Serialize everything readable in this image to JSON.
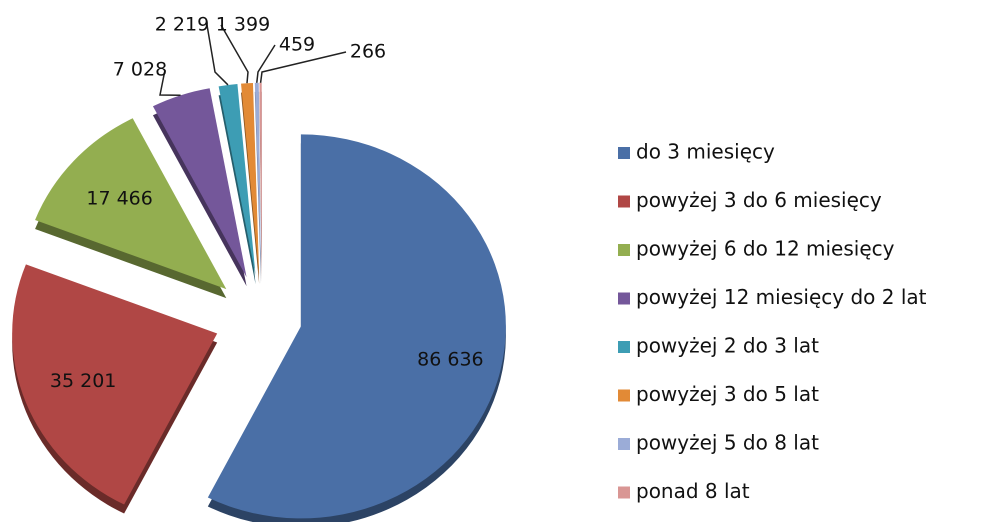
{
  "chart_data": {
    "type": "pie",
    "categories": [
      "do 3 miesięcy",
      "powyżej 3 do 6 miesięcy",
      "powyżej 6 do 12 miesięcy",
      "powyżej 12 miesięcy do 2 lat",
      "powyżej 2 do 3 lat",
      "powyżej 3 do 5 lat",
      "powyżej 5 do 8 lat",
      "ponad 8 lat"
    ],
    "values": [
      86636,
      35201,
      17466,
      7028,
      2219,
      1399,
      459,
      266
    ],
    "value_labels": [
      "86 636",
      "35 201",
      "17 466",
      "7 028",
      "2 219",
      "1 399",
      "459",
      "266"
    ],
    "colors": [
      "#4a6fa6",
      "#b04745",
      "#93ae50",
      "#74579a",
      "#3d9db4",
      "#e28a36",
      "#9bacd7",
      "#d99694"
    ],
    "legend": "right"
  }
}
